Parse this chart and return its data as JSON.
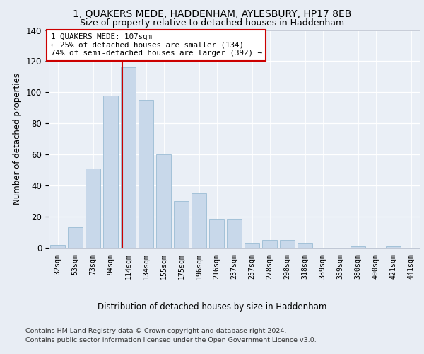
{
  "title1": "1, QUAKERS MEDE, HADDENHAM, AYLESBURY, HP17 8EB",
  "title2": "Size of property relative to detached houses in Haddenham",
  "xlabel": "Distribution of detached houses by size in Haddenham",
  "ylabel": "Number of detached properties",
  "categories": [
    "32sqm",
    "53sqm",
    "73sqm",
    "94sqm",
    "114sqm",
    "134sqm",
    "155sqm",
    "175sqm",
    "196sqm",
    "216sqm",
    "237sqm",
    "257sqm",
    "278sqm",
    "298sqm",
    "318sqm",
    "339sqm",
    "359sqm",
    "380sqm",
    "400sqm",
    "421sqm",
    "441sqm"
  ],
  "values": [
    2,
    13,
    51,
    98,
    116,
    95,
    60,
    30,
    35,
    18,
    18,
    3,
    5,
    5,
    3,
    0,
    0,
    1,
    0,
    1,
    0
  ],
  "bar_color": "#c8d8ea",
  "bar_edge_color": "#9bbcd4",
  "vline_color": "#cc0000",
  "vline_pos": 3.65,
  "annotation_line1": "1 QUAKERS MEDE: 107sqm",
  "annotation_line2": "← 25% of detached houses are smaller (134)",
  "annotation_line3": "74% of semi-detached houses are larger (392) →",
  "footer1": "Contains HM Land Registry data © Crown copyright and database right 2024.",
  "footer2": "Contains public sector information licensed under the Open Government Licence v3.0.",
  "bg_color": "#e8edf4",
  "plot_bg_color": "#eaeff6",
  "ylim": [
    0,
    140
  ],
  "yticks": [
    0,
    20,
    40,
    60,
    80,
    100,
    120,
    140
  ]
}
